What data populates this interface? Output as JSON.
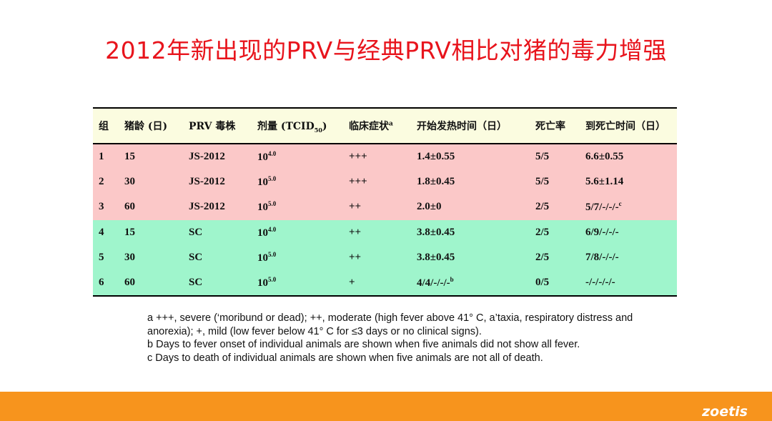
{
  "title": "2012年新出现的PRV与经典PRV相比对猪的毒力增强",
  "table": {
    "headers": {
      "group": "组",
      "age": "猪龄 (日)",
      "strain": "PRV 毒株",
      "dose_prefix": "剂量 (TCID",
      "dose_sub": "50",
      "dose_suffix": ")",
      "symptoms": "临床症状",
      "symptoms_sup": "a",
      "fever_onset": "开始发热时间（日）",
      "mortality": "死亡率",
      "time_to_death": "到死亡时间（日）"
    },
    "rows": [
      {
        "group": "1",
        "age": "15",
        "strain": "JS-2012",
        "dose_base": "10",
        "dose_exp": "4.0",
        "symptoms": "+++",
        "fever": "1.4±0.55",
        "mortality": "5/5",
        "death": "6.6±0.55"
      },
      {
        "group": "2",
        "age": "30",
        "strain": "JS-2012",
        "dose_base": "10",
        "dose_exp": "5.0",
        "symptoms": "+++",
        "fever": "1.8±0.45",
        "mortality": "5/5",
        "death": "5.6±1.14"
      },
      {
        "group": "3",
        "age": "60",
        "strain": "JS-2012",
        "dose_base": "10",
        "dose_exp": "5.0",
        "symptoms": "++",
        "fever": "2.0±0",
        "mortality": "2/5",
        "death": "5/7/-/-/-",
        "death_sup": "c"
      },
      {
        "group": "4",
        "age": "15",
        "strain": "SC",
        "dose_base": "10",
        "dose_exp": "4.0",
        "symptoms": "++",
        "fever": "3.8±0.45",
        "mortality": "2/5",
        "death": "6/9/-/-/-"
      },
      {
        "group": "5",
        "age": "30",
        "strain": "SC",
        "dose_base": "10",
        "dose_exp": "5.0",
        "symptoms": "++",
        "fever": "3.8±0.45",
        "mortality": "2/5",
        "death": "7/8/-/-/-"
      },
      {
        "group": "6",
        "age": "60",
        "strain": "SC",
        "dose_base": "10",
        "dose_exp": "5.0",
        "symptoms": "+",
        "fever": "4/4/-/-/-",
        "fever_sup": "b",
        "mortality": "0/5",
        "death": "-/-/-/-/-"
      }
    ]
  },
  "notes": [
    "a +++, severe (‘moribund or dead); ++, moderate (high fever above 41° C, a’taxia, respiratory distress and anorexia); +, mild (low fever below 41° C for ≤3 days or no clinical signs).",
    "b Days to fever onset of individual animals are shown when five animals did not show all fever.",
    "c Days to death of individual animals are shown when five animals are not all of death."
  ],
  "footer": {
    "logo": "zoetis",
    "color": "#f7941d"
  },
  "colors": {
    "title": "#e8141c",
    "header_bg": "#fbfce0",
    "js2012_rows": "#fbc8c8",
    "sc_rows": "#9ff5cc"
  }
}
